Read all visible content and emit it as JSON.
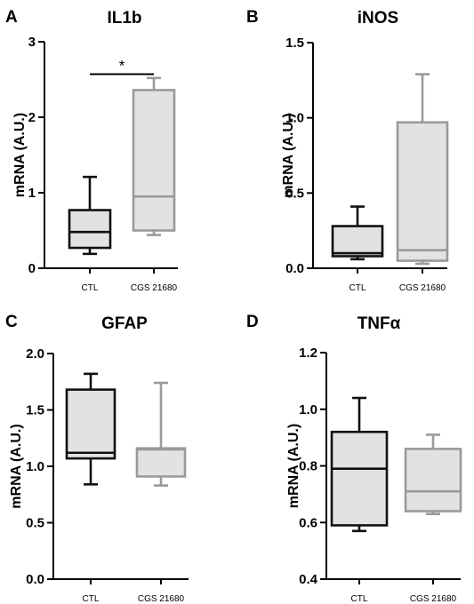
{
  "chart_data": [
    {
      "type": "box",
      "panel": "A",
      "title": "IL1b",
      "ylabel": "mRNA (A.U.)",
      "ylim": [
        0,
        3
      ],
      "yticks": [
        "0",
        "1",
        "2",
        "3"
      ],
      "categories": [
        "CTL",
        "CGS 21680"
      ],
      "boxes": [
        {
          "category": "CTL",
          "min": 0.19,
          "q1": 0.27,
          "median": 0.48,
          "q3": 0.77,
          "max": 1.21,
          "color": "#111111"
        },
        {
          "category": "CGS 21680",
          "min": 0.44,
          "q1": 0.5,
          "median": 0.95,
          "q3": 2.36,
          "max": 2.52,
          "color": "#9a9a9a"
        }
      ],
      "significance": {
        "from": "CTL",
        "to": "CGS 21680",
        "y": 2.57,
        "label": "*"
      }
    },
    {
      "type": "box",
      "panel": "B",
      "title": "iNOS",
      "ylabel": "mRNA (A.U.)",
      "ylim": [
        0,
        1.5
      ],
      "yticks": [
        "0.0",
        "0.5",
        "1.0",
        "1.5"
      ],
      "categories": [
        "CTL",
        "CGS 21680"
      ],
      "boxes": [
        {
          "category": "CTL",
          "min": 0.06,
          "q1": 0.08,
          "median": 0.1,
          "q3": 0.28,
          "max": 0.41,
          "color": "#111111"
        },
        {
          "category": "CGS 21680",
          "min": 0.03,
          "q1": 0.05,
          "median": 0.12,
          "q3": 0.97,
          "max": 1.29,
          "color": "#9a9a9a"
        }
      ]
    },
    {
      "type": "box",
      "panel": "C",
      "title": "GFAP",
      "ylabel": "mRNA (A.U.)",
      "ylim": [
        0,
        2
      ],
      "yticks": [
        "0.0",
        "0.5",
        "1.0",
        "1.5",
        "2.0"
      ],
      "categories": [
        "CTL",
        "CGS 21680"
      ],
      "boxes": [
        {
          "category": "CTL",
          "min": 0.84,
          "q1": 1.07,
          "median": 1.12,
          "q3": 1.68,
          "max": 1.82,
          "color": "#111111"
        },
        {
          "category": "CGS 21680",
          "min": 0.83,
          "q1": 0.91,
          "median": 1.15,
          "q3": 1.16,
          "max": 1.74,
          "color": "#9a9a9a"
        }
      ]
    },
    {
      "type": "box",
      "panel": "D",
      "title": "TNFα",
      "ylabel": "mRNA (A.U.)",
      "ylim": [
        0.4,
        1.2
      ],
      "yticks": [
        "0.4",
        "0.6",
        "0.8",
        "1.0",
        "1.2"
      ],
      "categories": [
        "CTL",
        "CGS 21680"
      ],
      "boxes": [
        {
          "category": "CTL",
          "min": 0.57,
          "q1": 0.59,
          "median": 0.79,
          "q3": 0.92,
          "max": 1.04,
          "color": "#111111"
        },
        {
          "category": "CGS 21680",
          "min": 0.63,
          "q1": 0.64,
          "median": 0.71,
          "q3": 0.86,
          "max": 0.91,
          "color": "#9a9a9a"
        }
      ]
    }
  ],
  "colors": {
    "box_fill": "#e2e2e2",
    "axis": "#000000"
  }
}
